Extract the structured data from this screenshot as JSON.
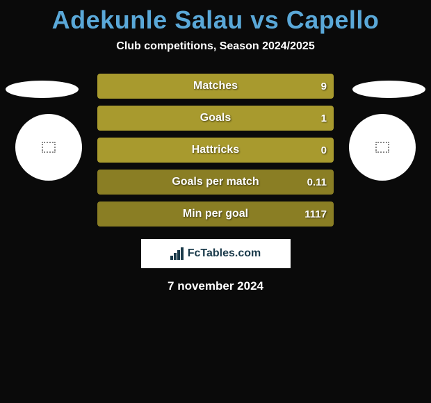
{
  "title": "Adekunle Salau vs Capello",
  "subtitle": "Club competitions, Season 2024/2025",
  "colors": {
    "title_color": "#5aa8d8",
    "bar_olive": "#a89a2e",
    "bar_olive_dark": "#8a7e24",
    "background": "#0a0a0a",
    "text_white": "#ffffff"
  },
  "stats": [
    {
      "label": "Matches",
      "value": "9",
      "bg": "#a89a2e"
    },
    {
      "label": "Goals",
      "value": "1",
      "bg": "#a89a2e"
    },
    {
      "label": "Hattricks",
      "value": "0",
      "bg": "#a89a2e"
    },
    {
      "label": "Goals per match",
      "value": "0.11",
      "bg": "#8a7e24"
    },
    {
      "label": "Min per goal",
      "value": "1117",
      "bg": "#8a7e24"
    }
  ],
  "badge": {
    "text": "FcTables.com"
  },
  "date": "7 november 2024"
}
